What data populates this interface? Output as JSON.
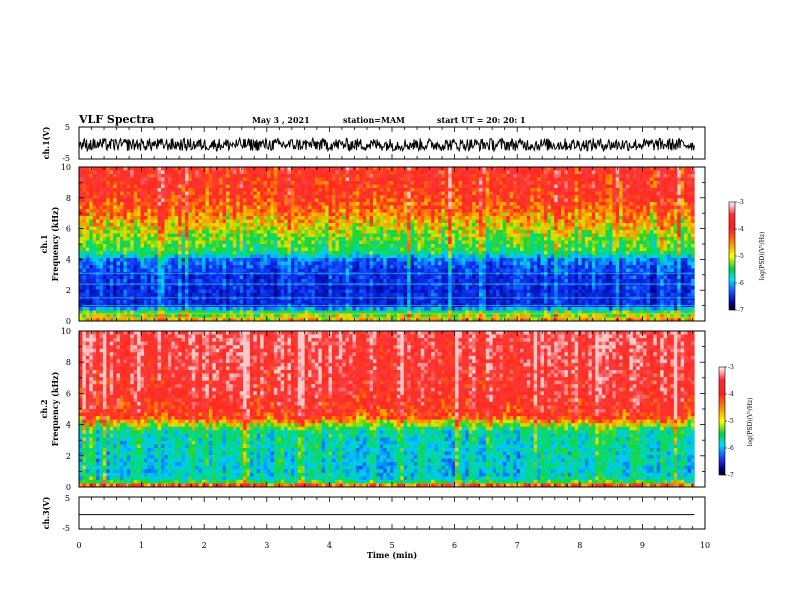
{
  "header": {
    "title": "VLF Spectra",
    "date": "May 3 , 2021",
    "station": "station=MAM",
    "start": "start UT =  20: 20: 1"
  },
  "chart_data": [
    {
      "type": "line",
      "name": "ch1-waveform",
      "ylabel": "ch.1(V)",
      "xlim": [
        0,
        10
      ],
      "ylim": [
        -5,
        5
      ],
      "yticks": [
        "5",
        "-5"
      ],
      "data_extent": 9.83,
      "band": [
        -2.5,
        1.5
      ],
      "trace_color": "#000000"
    },
    {
      "type": "heatmap",
      "name": "ch1-spectrogram",
      "ylabel": "ch.1\nFrequency (kHz)",
      "ylabel_lines": [
        "ch.1",
        "Frequency (kHz)"
      ],
      "xlim": [
        0,
        10
      ],
      "ylim": [
        0,
        10
      ],
      "yticks": [
        "0",
        "2",
        "4",
        "6",
        "8",
        "10"
      ],
      "data_extent": 9.83,
      "zlabel": "log(PSD)(V²/Hz)",
      "zlim": [
        -7,
        -3
      ],
      "zticks": [
        "-3",
        "-4",
        "-5",
        "-6",
        "-7"
      ],
      "profile": [
        {
          "f": 0,
          "z": -4.2
        },
        {
          "f": 0.6,
          "z": -5.0
        },
        {
          "f": 1.0,
          "z": -6.3
        },
        {
          "f": 3.0,
          "z": -6.2
        },
        {
          "f": 4.0,
          "z": -5.8
        },
        {
          "f": 4.5,
          "z": -5.0
        },
        {
          "f": 5.5,
          "z": -4.7
        },
        {
          "f": 6.5,
          "z": -4.3
        },
        {
          "f": 8.0,
          "z": -3.8
        },
        {
          "f": 10,
          "z": -3.6
        }
      ],
      "lines_khz": [
        0.2,
        0.5,
        1.0,
        1.5,
        2.4,
        3.1
      ]
    },
    {
      "type": "heatmap",
      "name": "ch2-spectrogram",
      "ylabel": "ch.2\nFrequency (kHz)",
      "ylabel_lines": [
        "ch.2",
        "Frequency (kHz)"
      ],
      "xlim": [
        0,
        10
      ],
      "ylim": [
        0,
        10
      ],
      "yticks": [
        "0",
        "2",
        "4",
        "6",
        "8",
        "10"
      ],
      "data_extent": 9.83,
      "zlabel": "log(PSD)(V²/Hz)",
      "zlim": [
        -7,
        -3
      ],
      "zticks": [
        "-3",
        "-4",
        "-5",
        "-6",
        "-7"
      ],
      "profile": [
        {
          "f": 0,
          "z": -3.5
        },
        {
          "f": 0.4,
          "z": -5.2
        },
        {
          "f": 1.0,
          "z": -5.4
        },
        {
          "f": 3.5,
          "z": -5.2
        },
        {
          "f": 4.0,
          "z": -4.6
        },
        {
          "f": 4.5,
          "z": -3.8
        },
        {
          "f": 6.0,
          "z": -3.5
        },
        {
          "f": 10,
          "z": -3.3
        }
      ],
      "lines_khz": []
    },
    {
      "type": "line",
      "name": "ch3-waveform",
      "ylabel": "ch.3(V)",
      "xlabel": "Time (min)",
      "xlim": [
        0,
        10
      ],
      "xticks": [
        "0",
        "1",
        "2",
        "3",
        "4",
        "5",
        "6",
        "7",
        "8",
        "9",
        "10"
      ],
      "ylim": [
        -5,
        5
      ],
      "yticks": [
        "5",
        "-5"
      ],
      "data_extent": 9.83,
      "value": -0.5,
      "trace_color": "#000000"
    }
  ]
}
